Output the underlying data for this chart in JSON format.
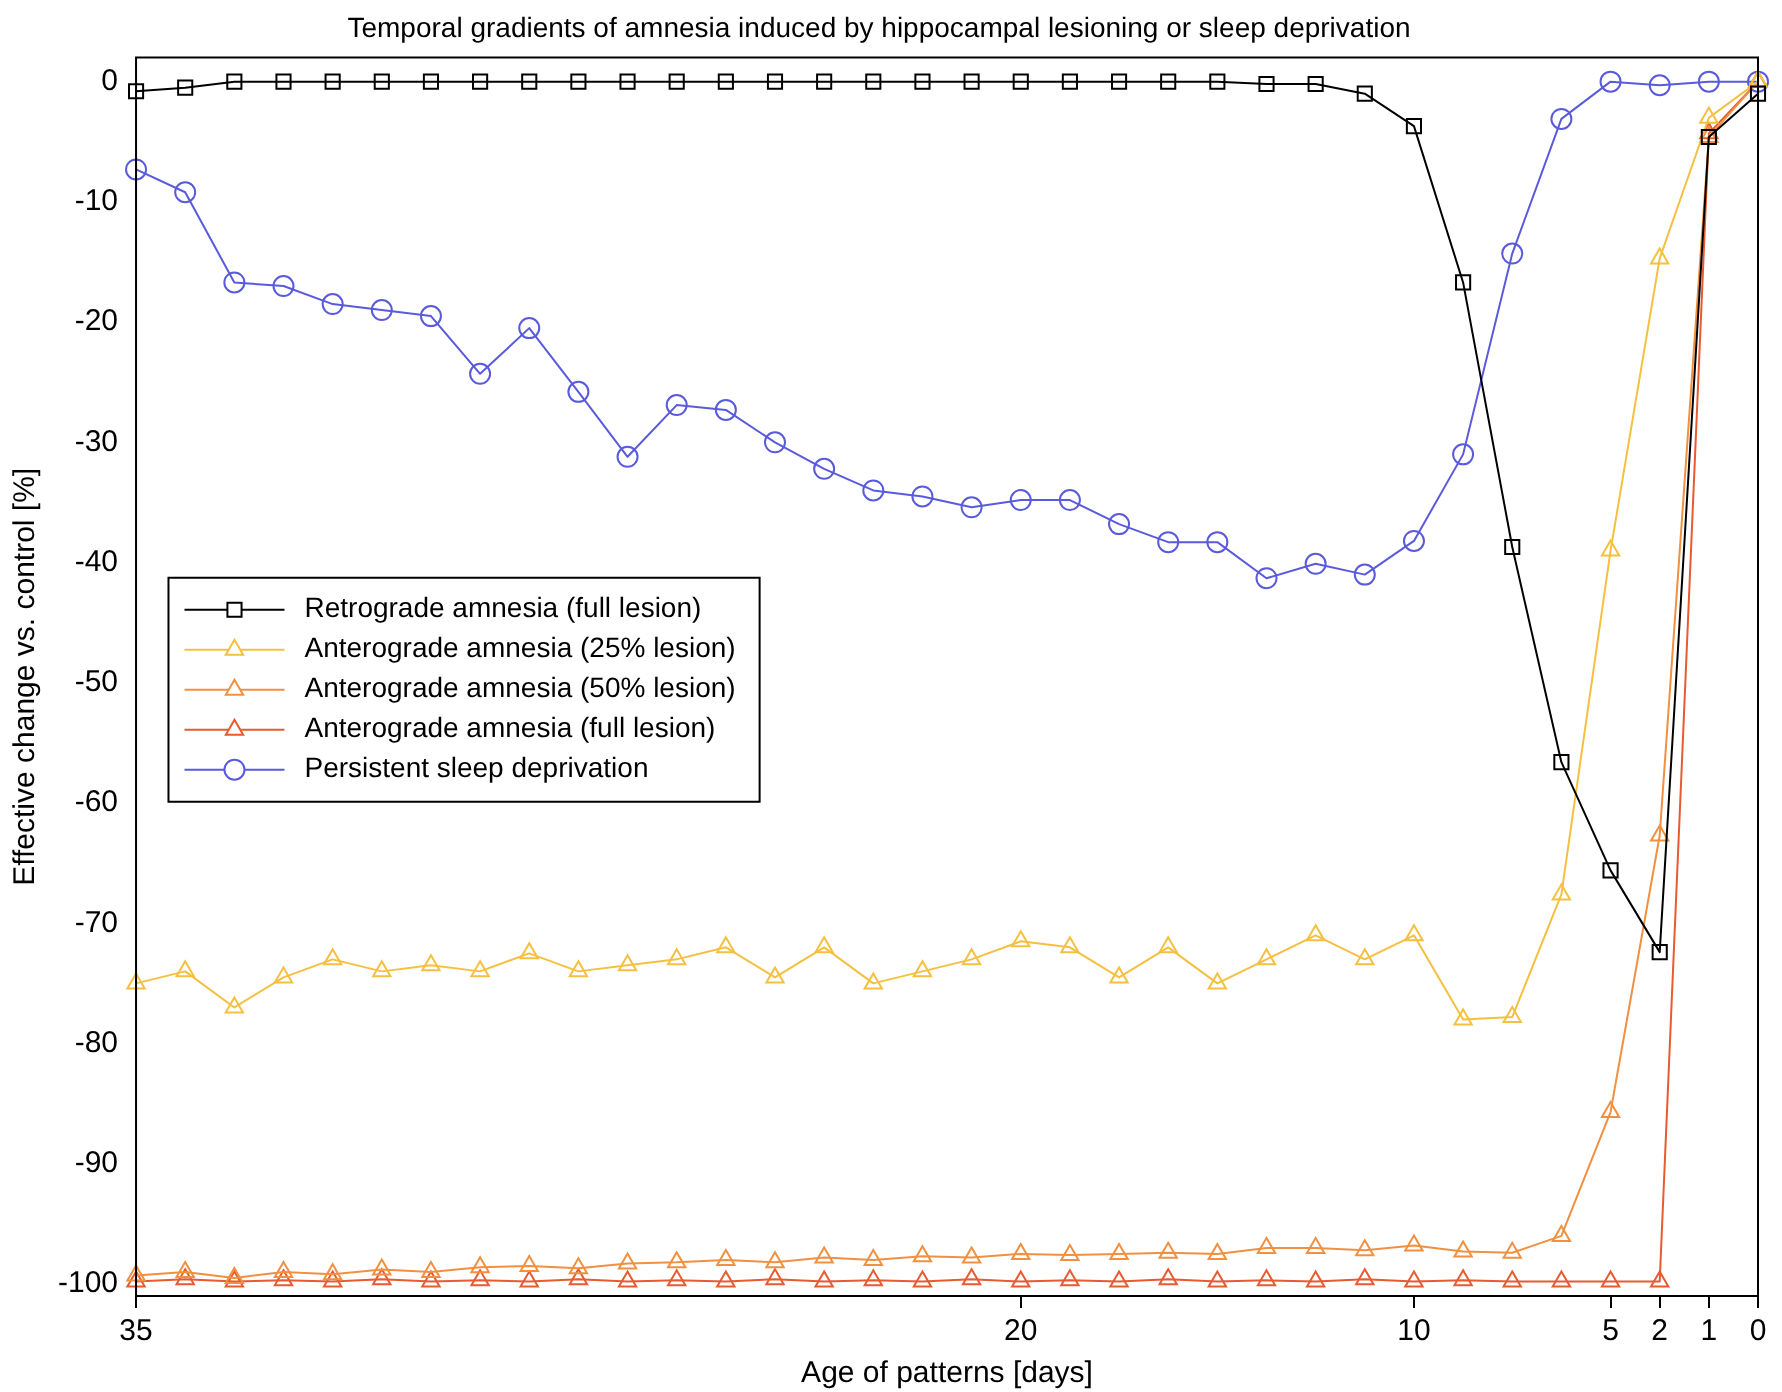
{
  "chart_data": {
    "type": "line",
    "title": "Temporal gradients of amnesia induced by hippocampal lesioning or sleep deprivation",
    "xlabel": "Age of patterns [days]",
    "ylabel": "Effective change vs. control [%]",
    "categories": [
      "35",
      null,
      null,
      null,
      null,
      null,
      null,
      null,
      null,
      null,
      null,
      null,
      null,
      null,
      null,
      null,
      null,
      null,
      "20",
      null,
      null,
      null,
      null,
      null,
      null,
      null,
      "10",
      null,
      null,
      null,
      "5",
      "2",
      "1",
      "0"
    ],
    "ylim": [
      -101,
      2
    ],
    "yticks": [
      -100,
      -90,
      -80,
      -70,
      -60,
      -50,
      -40,
      -30,
      -20,
      -10,
      0
    ],
    "grid": false,
    "legend": "left",
    "line_style": "solid",
    "series": [
      {
        "name": "Retrograde amnesia (full lesion)",
        "color": "#000000",
        "marker": "square",
        "values": [
          -0.8,
          -0.5,
          0,
          0,
          0,
          0,
          0,
          0,
          0,
          0,
          0,
          0,
          0,
          0,
          0,
          0,
          0,
          0,
          0,
          0,
          0,
          0,
          0,
          -0.2,
          -0.2,
          -1,
          -3.7,
          -16.7,
          -38.7,
          -56.6,
          -65.6,
          -72.4,
          -4.6,
          -1
        ]
      },
      {
        "name": "Anterograde amnesia (25% lesion)",
        "color": "#f5c040",
        "marker": "triangle",
        "values": [
          -75,
          -74,
          -77,
          -74.5,
          -73,
          -74,
          -73.5,
          -74,
          -72.5,
          -74,
          -73.5,
          -73,
          -72,
          -74.5,
          -72,
          -75,
          -74,
          -73,
          -71.5,
          -72,
          -74.5,
          -72,
          -75,
          -73,
          -71,
          -73,
          -71,
          -78,
          -77.8,
          -67.6,
          -39,
          -14.7,
          -3,
          0
        ]
      },
      {
        "name": "Anterograde amnesia (50% lesion)",
        "color": "#f09040",
        "marker": "triangle",
        "values": [
          -99.3,
          -99,
          -99.5,
          -99,
          -99.2,
          -98.8,
          -99,
          -98.6,
          -98.5,
          -98.7,
          -98.3,
          -98.2,
          -98,
          -98.2,
          -97.8,
          -98,
          -97.7,
          -97.8,
          -97.5,
          -97.6,
          -97.5,
          -97.4,
          -97.5,
          -97,
          -97,
          -97.2,
          -96.8,
          -97.3,
          -97.4,
          -96,
          -85.7,
          -62.7,
          -4.6,
          0
        ]
      },
      {
        "name": "Anterograde amnesia (full lesion)",
        "color": "#e85a30",
        "marker": "triangle",
        "values": [
          -99.8,
          -99.6,
          -99.8,
          -99.7,
          -99.8,
          -99.6,
          -99.8,
          -99.7,
          -99.8,
          -99.6,
          -99.8,
          -99.7,
          -99.8,
          -99.6,
          -99.8,
          -99.7,
          -99.8,
          -99.6,
          -99.8,
          -99.7,
          -99.8,
          -99.6,
          -99.8,
          -99.7,
          -99.8,
          -99.6,
          -99.8,
          -99.7,
          -99.8,
          -99.8,
          -99.8,
          -99.8,
          -4.3,
          0
        ]
      },
      {
        "name": "Persistent sleep deprivation",
        "color": "#5a5adc",
        "marker": "circle",
        "values": [
          -7.3,
          -9.2,
          -16.7,
          -17,
          -18.5,
          -19,
          -19.5,
          -24.3,
          -20.5,
          -25.8,
          -31.2,
          -26.9,
          -27.3,
          -30,
          -32.2,
          -34,
          -34.5,
          -35.4,
          -34.8,
          -34.8,
          -36.8,
          -38.3,
          -38.3,
          -41.3,
          -40.1,
          -41,
          -38.2,
          -31,
          -14.3,
          -3.1,
          0,
          -0.3,
          0,
          0
        ]
      }
    ]
  }
}
